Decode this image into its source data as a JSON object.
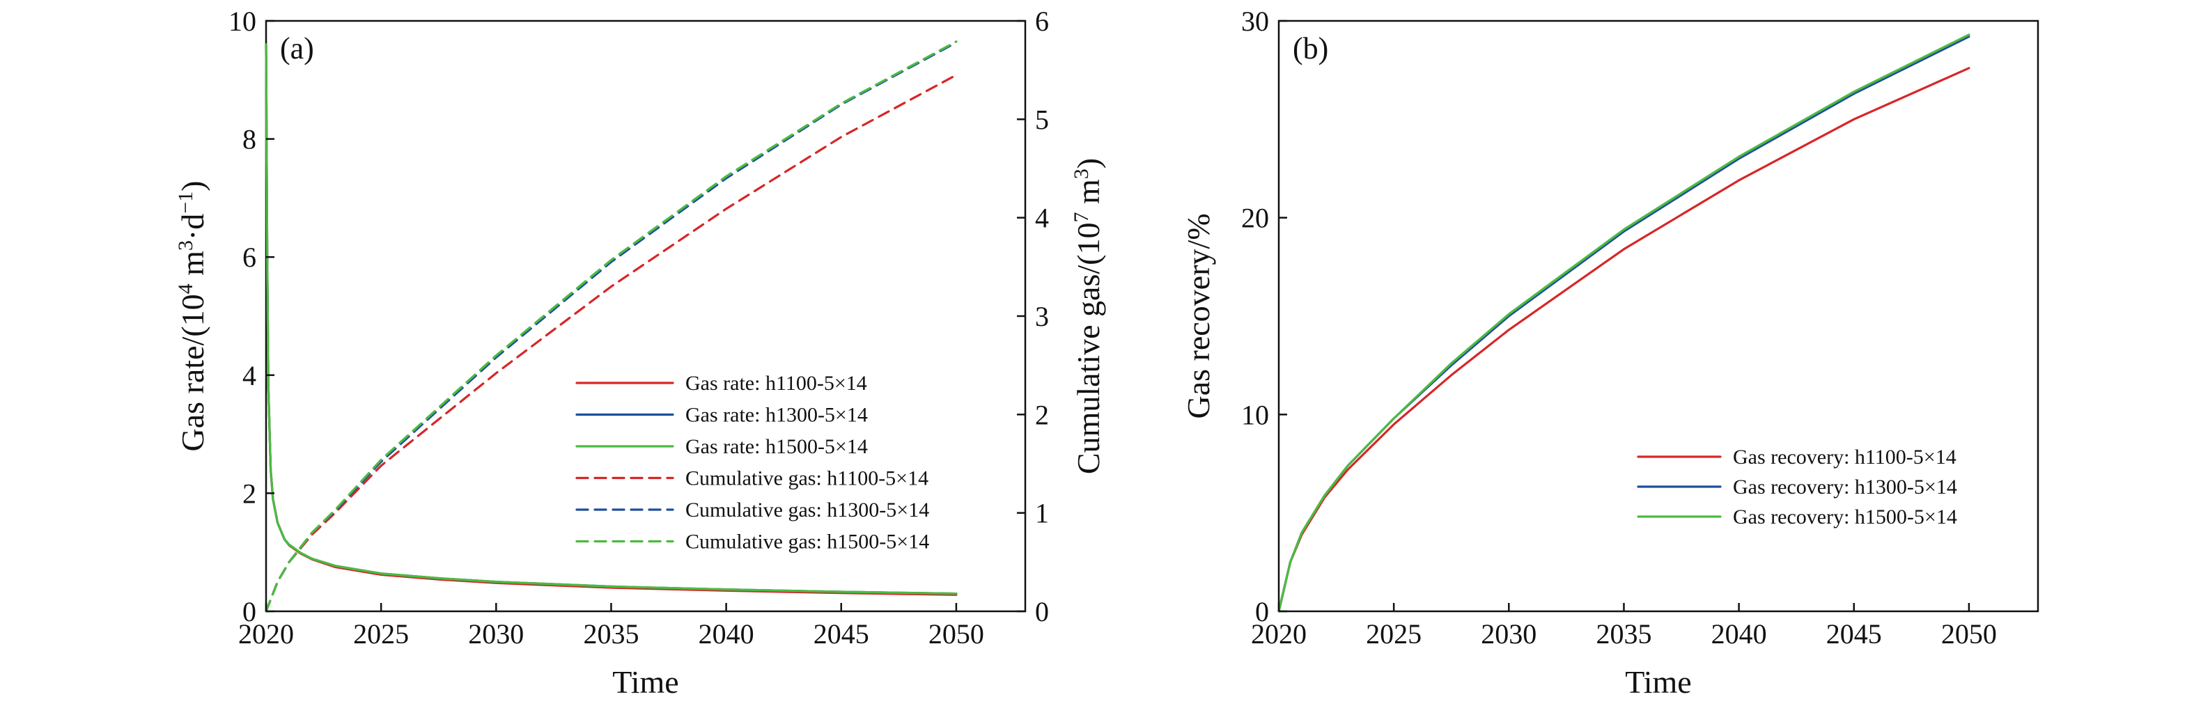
{
  "colors": {
    "h1100": "#d62728",
    "h1300": "#1f4e9c",
    "h1500": "#4cbb3f"
  },
  "chart_data": [
    {
      "type": "line",
      "panel_label": "(a)",
      "xlabel": "Time",
      "ylabel_prefix": "Gas rate/(10",
      "ylabel_exp1": "4",
      "ylabel_mid": " m",
      "ylabel_exp2": "3",
      "ylabel_mid2": "·d",
      "ylabel_exp3": "−1",
      "ylabel_suffix": ")",
      "y2label_prefix": "Cumulative gas/(10",
      "y2label_exp1": "7",
      "y2label_mid": " m",
      "y2label_exp2": "3",
      "y2label_suffix": ")",
      "xlim": [
        2020,
        2053
      ],
      "ylim": [
        0,
        10
      ],
      "y2lim": [
        0,
        6
      ],
      "xticks": [
        2020,
        2025,
        2030,
        2035,
        2040,
        2045,
        2050
      ],
      "yticks": [
        0,
        2,
        4,
        6,
        8,
        10
      ],
      "y2ticks": [
        0,
        1,
        2,
        3,
        4,
        5,
        6
      ],
      "grid": false,
      "legend_position": "bottom-right",
      "series": [
        {
          "name": "Gas rate: h1100-5×14",
          "axis": "left",
          "color_key": "h1100",
          "dash": "solid",
          "x": [
            2020,
            2020.05,
            2020.1,
            2020.2,
            2020.3,
            2020.5,
            2020.8,
            2021,
            2021.5,
            2022,
            2023,
            2025,
            2027.5,
            2030,
            2035,
            2040,
            2045,
            2050
          ],
          "y": [
            9.6,
            6.0,
            3.8,
            2.4,
            1.9,
            1.5,
            1.22,
            1.12,
            0.98,
            0.88,
            0.75,
            0.62,
            0.54,
            0.48,
            0.4,
            0.35,
            0.31,
            0.28
          ]
        },
        {
          "name": "Gas rate: h1300-5×14",
          "axis": "left",
          "color_key": "h1300",
          "dash": "solid",
          "x": [
            2020,
            2020.05,
            2020.1,
            2020.2,
            2020.3,
            2020.5,
            2020.8,
            2021,
            2021.5,
            2022,
            2023,
            2025,
            2027.5,
            2030,
            2035,
            2040,
            2045,
            2050
          ],
          "y": [
            9.6,
            6.0,
            3.8,
            2.4,
            1.9,
            1.5,
            1.22,
            1.13,
            0.99,
            0.89,
            0.77,
            0.64,
            0.56,
            0.5,
            0.42,
            0.37,
            0.33,
            0.3
          ]
        },
        {
          "name": "Gas rate: h1500-5×14",
          "axis": "left",
          "color_key": "h1500",
          "dash": "solid",
          "x": [
            2020,
            2020.05,
            2020.1,
            2020.2,
            2020.3,
            2020.5,
            2020.8,
            2021,
            2021.5,
            2022,
            2023,
            2025,
            2027.5,
            2030,
            2035,
            2040,
            2045,
            2050
          ],
          "y": [
            9.6,
            6.0,
            3.8,
            2.4,
            1.9,
            1.5,
            1.22,
            1.13,
            0.99,
            0.89,
            0.77,
            0.64,
            0.56,
            0.5,
            0.42,
            0.37,
            0.33,
            0.3
          ]
        },
        {
          "name": "Cumulative gas: h1100-5×14",
          "axis": "right",
          "color_key": "h1100",
          "dash": "dashed",
          "x": [
            2020,
            2020.5,
            2021,
            2022,
            2023,
            2025,
            2027.5,
            2030,
            2035,
            2040,
            2045,
            2050
          ],
          "y": [
            0,
            0.3,
            0.5,
            0.78,
            1.0,
            1.48,
            1.95,
            2.42,
            3.3,
            4.09,
            4.82,
            5.45
          ]
        },
        {
          "name": "Cumulative gas: h1300-5×14",
          "axis": "right",
          "color_key": "h1300",
          "dash": "dashed",
          "x": [
            2020,
            2020.5,
            2021,
            2022,
            2023,
            2025,
            2027.5,
            2030,
            2035,
            2040,
            2045,
            2050
          ],
          "y": [
            0,
            0.3,
            0.5,
            0.8,
            1.02,
            1.52,
            2.05,
            2.58,
            3.55,
            4.4,
            5.15,
            5.78
          ]
        },
        {
          "name": "Cumulative gas: h1500-5×14",
          "axis": "right",
          "color_key": "h1500",
          "dash": "dashed",
          "x": [
            2020,
            2020.5,
            2021,
            2022,
            2023,
            2025,
            2027.5,
            2030,
            2035,
            2040,
            2045,
            2050
          ],
          "y": [
            0,
            0.3,
            0.5,
            0.8,
            1.03,
            1.54,
            2.07,
            2.6,
            3.57,
            4.42,
            5.16,
            5.79
          ]
        }
      ]
    },
    {
      "type": "line",
      "panel_label": "(b)",
      "xlabel": "Time",
      "ylabel": "Gas recovery/%",
      "xlim": [
        2020,
        2053
      ],
      "ylim": [
        0,
        30
      ],
      "xticks": [
        2020,
        2025,
        2030,
        2035,
        2040,
        2045,
        2050
      ],
      "yticks": [
        0,
        10,
        20,
        30
      ],
      "grid": false,
      "legend_position": "center-right",
      "series": [
        {
          "name": "Gas recovery: h1100-5×14",
          "color_key": "h1100",
          "dash": "solid",
          "x": [
            2020,
            2020.5,
            2021,
            2022,
            2023,
            2025,
            2027.5,
            2030,
            2035,
            2040,
            2045,
            2050
          ],
          "y": [
            0,
            2.5,
            3.9,
            5.8,
            7.2,
            9.5,
            12.0,
            14.3,
            18.4,
            21.9,
            25.0,
            27.6
          ]
        },
        {
          "name": "Gas recovery: h1300-5×14",
          "color_key": "h1300",
          "dash": "solid",
          "x": [
            2020,
            2020.5,
            2021,
            2022,
            2023,
            2025,
            2027.5,
            2030,
            2035,
            2040,
            2045,
            2050
          ],
          "y": [
            0,
            2.5,
            4.0,
            5.9,
            7.4,
            9.8,
            12.5,
            15.0,
            19.3,
            23.0,
            26.3,
            29.2
          ]
        },
        {
          "name": "Gas recovery: h1500-5×14",
          "color_key": "h1500",
          "dash": "solid",
          "x": [
            2020,
            2020.5,
            2021,
            2022,
            2023,
            2025,
            2027.5,
            2030,
            2035,
            2040,
            2045,
            2050
          ],
          "y": [
            0,
            2.5,
            4.0,
            5.9,
            7.4,
            9.8,
            12.6,
            15.1,
            19.4,
            23.1,
            26.4,
            29.3
          ]
        }
      ]
    }
  ]
}
